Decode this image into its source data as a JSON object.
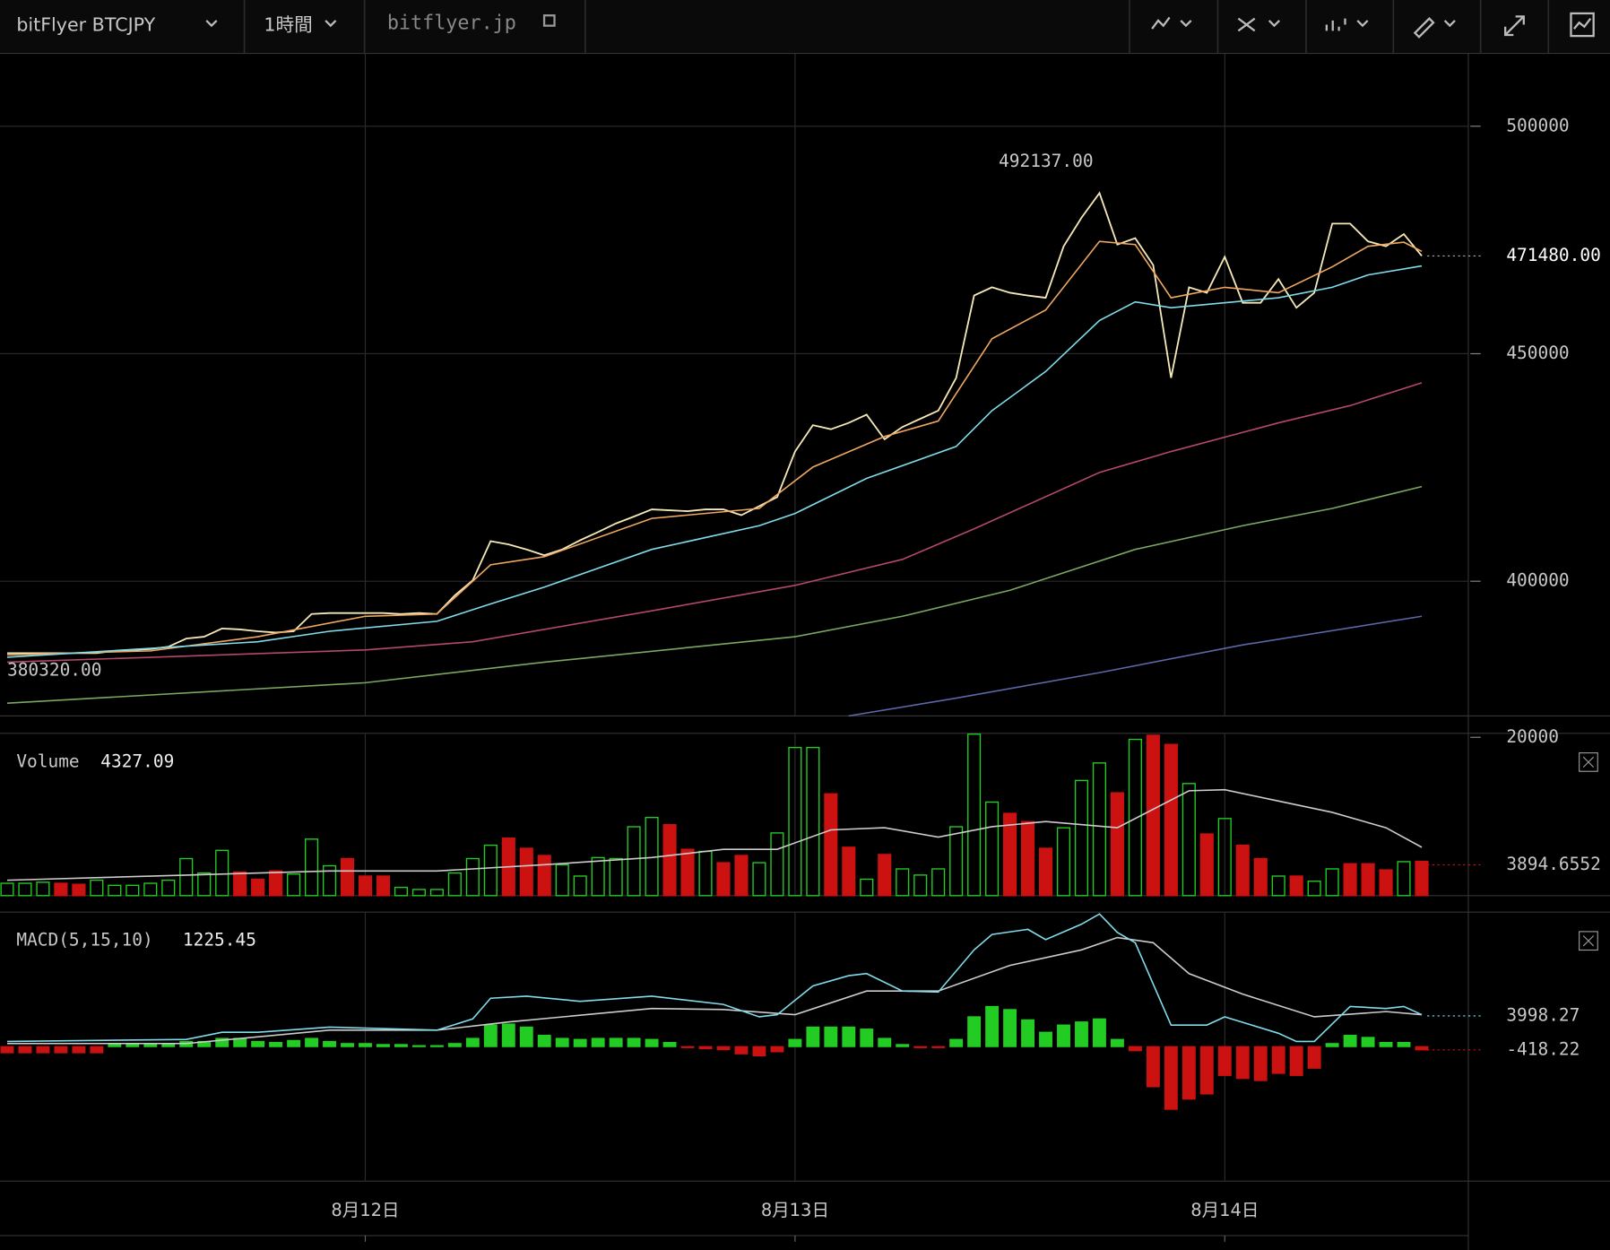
{
  "toolbar": {
    "symbol": "bitFlyer BTCJPY",
    "interval": "1時間",
    "site": "bitflyer.jp"
  },
  "chart_data": [
    {
      "type": "line",
      "x": [
        0,
        1,
        2,
        3,
        4,
        5,
        6,
        7,
        8,
        9,
        10,
        11,
        12,
        13,
        14,
        15,
        16,
        17,
        18,
        19,
        20,
        21,
        22,
        23,
        24,
        25,
        26,
        27,
        28,
        29,
        30,
        31,
        32,
        33,
        34,
        35,
        36,
        37,
        38,
        39,
        40,
        41,
        42,
        43,
        44,
        45,
        46,
        47,
        48,
        49,
        50,
        51,
        52,
        53,
        54,
        55,
        56,
        57,
        58,
        59,
        60,
        61,
        62,
        63,
        64,
        65,
        66,
        67,
        68,
        69,
        70,
        71,
        72,
        73,
        74,
        75,
        76,
        77,
        78,
        79
      ],
      "xlim": [
        -0.4,
        81.6
      ],
      "xticks": [
        {
          "value": 20,
          "label": "8月12日"
        },
        {
          "value": 44,
          "label": "8月13日"
        },
        {
          "value": 68,
          "label": "8月14日"
        }
      ],
      "ylim": [
        370400,
        516000
      ],
      "yticks": [
        400000,
        450000,
        500000
      ],
      "grid": true,
      "lines": [
        {
          "color": "#f4e8b8",
          "values": [
            384200,
            384200,
            384200,
            384200,
            384200,
            384200,
            384700,
            384900,
            385100,
            385600,
            387400,
            387800,
            389600,
            389400,
            389000,
            388700,
            389000,
            392800,
            393000,
            393000,
            393000,
            393000,
            392800,
            393000,
            392800,
            396900,
            400200,
            408800,
            408100,
            407000,
            405700,
            407000,
            409000,
            410800,
            412700,
            414200,
            415800,
            415600,
            415400,
            415800,
            415800,
            414500,
            416500,
            418500,
            428500,
            434300,
            433400,
            434800,
            436600,
            431200,
            433900,
            435700,
            437500,
            444700,
            462800,
            464600,
            463400,
            462800,
            462300,
            473600,
            479900,
            485300,
            474000,
            475400,
            469500,
            444700,
            464600,
            463400,
            471300,
            461200,
            461200,
            466400,
            460100,
            463400,
            478600,
            478600,
            474700,
            473600,
            476300,
            471480
          ]
        },
        {
          "color": "#f0a860",
          "x": [
            0,
            8,
            14,
            20,
            24,
            27,
            30,
            36,
            42,
            45,
            49,
            52,
            55,
            58,
            61,
            63,
            65,
            68,
            71,
            74,
            76,
            78,
            79
          ],
          "values": [
            383800,
            384700,
            387800,
            392300,
            392800,
            403600,
            405400,
            413800,
            416000,
            425100,
            431800,
            435200,
            453300,
            459600,
            474700,
            474000,
            462300,
            464600,
            463400,
            469100,
            473600,
            474500,
            472500
          ]
        },
        {
          "color": "#80dcea",
          "x": [
            0,
            14,
            18,
            24,
            27,
            30,
            36,
            42,
            44,
            48,
            53,
            55,
            58,
            61,
            63,
            65,
            71,
            74,
            76,
            79
          ],
          "values": [
            383300,
            386700,
            389000,
            391200,
            395000,
            398700,
            407000,
            412200,
            414900,
            422600,
            429600,
            437500,
            446100,
            457300,
            461400,
            460100,
            462300,
            464600,
            467300,
            469300
          ]
        },
        {
          "color": "#b4486a",
          "x": [
            0,
            20,
            26,
            36,
            44,
            50,
            54,
            61,
            65,
            71,
            75,
            79
          ],
          "values": [
            382200,
            384900,
            386700,
            393500,
            399100,
            404800,
            411500,
            423900,
            428500,
            434800,
            438600,
            443600
          ]
        },
        {
          "color": "#7aa860",
          "x": [
            0,
            20,
            30,
            44,
            50,
            56,
            63,
            69,
            74,
            79
          ],
          "values": [
            373200,
            377700,
            382200,
            387800,
            392300,
            398000,
            407000,
            412200,
            416000,
            420800
          ]
        },
        {
          "color": "#5b67a8",
          "x": [
            47,
            53,
            61,
            69,
            79
          ],
          "values": [
            370400,
            374300,
            379900,
            386000,
            392300
          ]
        }
      ],
      "annotations": [
        {
          "x": 61,
          "value": 492137,
          "label": "492137.00"
        },
        {
          "x": 0,
          "value": 380320,
          "label": "380320.00"
        }
      ],
      "last_price": {
        "value": 471480,
        "label": "471480.00"
      }
    },
    {
      "type": "bar",
      "title": "Volume",
      "values": [
        1560,
        1560,
        1690,
        1560,
        1430,
        1950,
        1300,
        1300,
        1560,
        1950,
        4680,
        2860,
        5720,
        2990,
        2080,
        3120,
        2730,
        7140,
        3770,
        4680,
        2470,
        2470,
        1040,
        780,
        780,
        2860,
        4680,
        6370,
        7270,
        5980,
        5070,
        3900,
        2470,
        4810,
        4680,
        8700,
        9870,
        8960,
        5850,
        5590,
        4160,
        5070,
        4160,
        7920,
        18710,
        18710,
        12860,
        6110,
        2080,
        5200,
        3380,
        2600,
        3380,
        8700,
        20400,
        11820,
        10390,
        9350,
        5980,
        8570,
        14550,
        16760,
        12990,
        19740,
        20260,
        19100,
        14160,
        7790,
        9740,
        6370,
        4680,
        2470,
        2470,
        1820,
        3380,
        4030,
        4030,
        3250,
        4290,
        4327.09
      ],
      "colors": [
        "#22cc22",
        "#22cc22",
        "#22cc22",
        "#cc1111",
        "#cc1111",
        "#22cc22",
        "#22cc22",
        "#22cc22",
        "#22cc22",
        "#22cc22",
        "#22cc22",
        "#22cc22",
        "#22cc22",
        "#cc1111",
        "#cc1111",
        "#cc1111",
        "#22cc22",
        "#22cc22",
        "#22cc22",
        "#cc1111",
        "#cc1111",
        "#cc1111",
        "#22cc22",
        "#22cc22",
        "#22cc22",
        "#22cc22",
        "#22cc22",
        "#22cc22",
        "#cc1111",
        "#cc1111",
        "#cc1111",
        "#22cc22",
        "#22cc22",
        "#22cc22",
        "#22cc22",
        "#22cc22",
        "#22cc22",
        "#cc1111",
        "#cc1111",
        "#22cc22",
        "#cc1111",
        "#cc1111",
        "#22cc22",
        "#22cc22",
        "#22cc22",
        "#22cc22",
        "#cc1111",
        "#cc1111",
        "#22cc22",
        "#cc1111",
        "#22cc22",
        "#22cc22",
        "#22cc22",
        "#22cc22",
        "#22cc22",
        "#22cc22",
        "#cc1111",
        "#cc1111",
        "#cc1111",
        "#22cc22",
        "#22cc22",
        "#22cc22",
        "#cc1111",
        "#22cc22",
        "#cc1111",
        "#cc1111",
        "#22cc22",
        "#cc1111",
        "#22cc22",
        "#cc1111",
        "#cc1111",
        "#22cc22",
        "#cc1111",
        "#22cc22",
        "#22cc22",
        "#cc1111",
        "#cc1111",
        "#cc1111",
        "#22cc22",
        "#cc1111"
      ],
      "hollow_color": "#22cc22",
      "ylim": [
        0,
        20500
      ],
      "yticks": [
        20000
      ],
      "ma": {
        "color": "#cccccc",
        "x": [
          0,
          10,
          18,
          24,
          30,
          36,
          40,
          43,
          46,
          49,
          52,
          55,
          58,
          62,
          66,
          68,
          71,
          74,
          77,
          79
        ],
        "values": [
          1950,
          2600,
          3120,
          3120,
          3900,
          4810,
          5850,
          5850,
          8310,
          8570,
          7400,
          8700,
          9350,
          8570,
          13250,
          13380,
          11950,
          10520,
          8570,
          6110
        ]
      },
      "marker": 3894.6552
    },
    {
      "type": "macd",
      "title": "MACD(5,15,10)",
      "reading": 1225.45,
      "histogram": [
        -800,
        -800,
        -800,
        -800,
        -800,
        -800,
        400,
        400,
        400,
        400,
        670,
        670,
        1070,
        1070,
        670,
        540,
        800,
        1070,
        670,
        400,
        400,
        270,
        270,
        130,
        130,
        400,
        1070,
        2810,
        2940,
        2540,
        1470,
        1070,
        940,
        1070,
        1070,
        1070,
        940,
        540,
        -130,
        -270,
        -400,
        -940,
        -1200,
        -670,
        940,
        2540,
        2540,
        2540,
        2280,
        1070,
        270,
        -130,
        -130,
        940,
        3880,
        5220,
        4820,
        3480,
        1870,
        2810,
        3210,
        3610,
        940,
        -540,
        -5220,
        -8160,
        -6830,
        -6160,
        -3750,
        -4150,
        -4420,
        -3480,
        -3750,
        -2810,
        400,
        1470,
        1200,
        540,
        540,
        -418.22
      ],
      "up_color": "#22cc22",
      "down_color": "#cc1111",
      "macd": {
        "color": "#80dcea",
        "x": [
          0,
          10,
          12,
          14,
          18,
          24,
          26,
          27,
          29,
          32,
          36,
          40,
          42,
          43,
          45,
          47,
          48,
          50,
          52,
          54,
          55,
          57,
          58,
          60,
          61,
          62,
          63,
          65,
          67,
          68,
          71,
          72,
          73,
          75,
          77,
          78,
          79
        ],
        "values": [
          670,
          940,
          1870,
          1870,
          2540,
          2140,
          3610,
          6290,
          6560,
          5890,
          6560,
          5490,
          3880,
          4150,
          7900,
          9230,
          9500,
          7230,
          7090,
          12580,
          14590,
          15260,
          13920,
          15930,
          17260,
          14850,
          13520,
          2810,
          2810,
          3880,
          1740,
          670,
          670,
          5220,
          4950,
          5220,
          4150
        ]
      },
      "signal": {
        "color": "#cccccc",
        "x": [
          0,
          10,
          18,
          24,
          28,
          36,
          40,
          44,
          48,
          52,
          56,
          60,
          62,
          64,
          66,
          69,
          73,
          77,
          79
        ],
        "values": [
          400,
          400,
          2140,
          2140,
          3210,
          4950,
          4820,
          4150,
          7230,
          7230,
          10570,
          12580,
          14190,
          13520,
          9500,
          6830,
          3880,
          4550,
          4150
        ]
      },
      "ylim": [
        -17500,
        17500
      ],
      "marker": 3998.27
    }
  ]
}
